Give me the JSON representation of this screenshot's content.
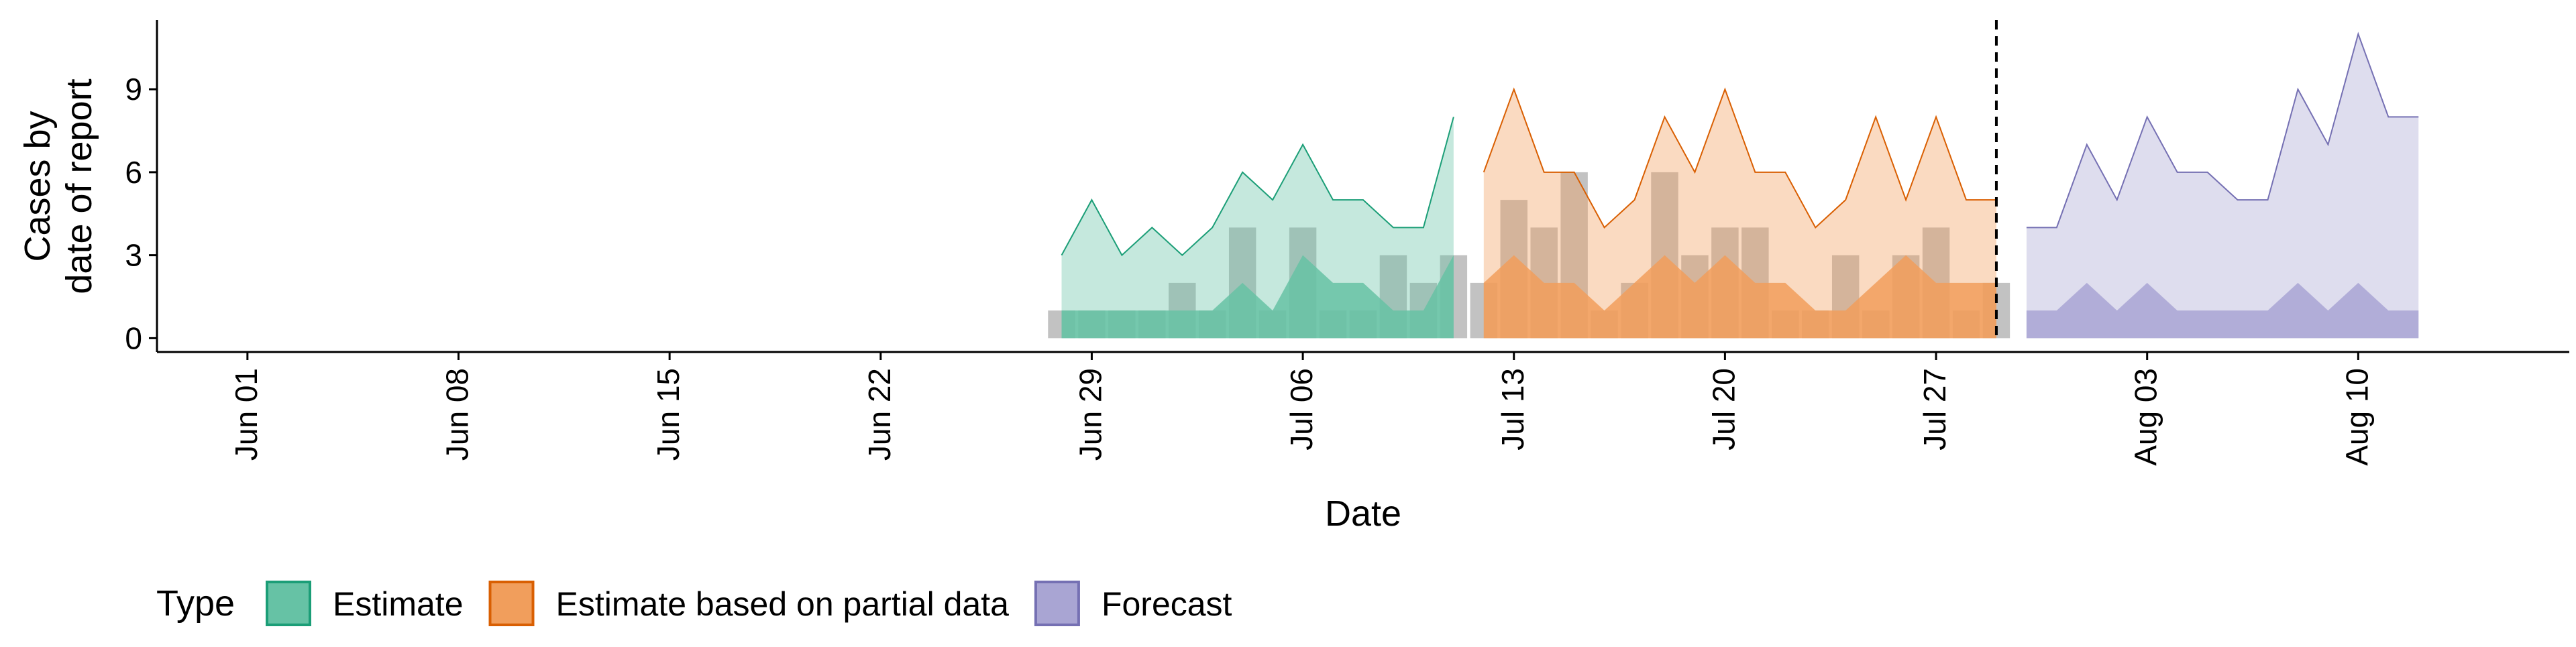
{
  "chart_data": {
    "type": "area",
    "xlabel": "Date",
    "ylabel_lines": [
      "Cases by",
      "date of report"
    ],
    "x_tick_labels": [
      "Jun 01",
      "Jun 08",
      "Jun 15",
      "Jun 22",
      "Jun 29",
      "Jul 06",
      "Jul 13",
      "Jul 20",
      "Jul 27",
      "Aug 03",
      "Aug 10"
    ],
    "x_tick_dates": [
      "2020-06-01",
      "2020-06-08",
      "2020-06-15",
      "2020-06-22",
      "2020-06-29",
      "2020-07-06",
      "2020-07-13",
      "2020-07-20",
      "2020-07-27",
      "2020-08-03",
      "2020-08-10"
    ],
    "xlim": [
      "2020-05-29",
      "2020-08-17"
    ],
    "y_ticks": [
      0,
      3,
      6,
      9
    ],
    "ylim": [
      -0.5,
      11.5
    ],
    "forecast_date": "2020-07-29",
    "legend": {
      "title": "Type",
      "position": "bottom",
      "entries": [
        {
          "label": "Estimate",
          "fill": "#66C2A5",
          "stroke": "#1B9E77"
        },
        {
          "label": "Estimate based on partial data",
          "fill": "#F19E5C",
          "stroke": "#D95F02"
        },
        {
          "label": "Forecast",
          "fill": "#A9A5D3",
          "stroke": "#7570B3"
        }
      ]
    },
    "series": [
      {
        "name": "Estimate",
        "color": "#1B9E77",
        "fill": "#66C2A5",
        "dates": [
          "2020-06-28",
          "2020-06-29",
          "2020-06-30",
          "2020-07-01",
          "2020-07-02",
          "2020-07-03",
          "2020-07-04",
          "2020-07-05",
          "2020-07-06",
          "2020-07-07",
          "2020-07-08",
          "2020-07-09",
          "2020-07-10",
          "2020-07-11"
        ],
        "lower": [
          1,
          1,
          1,
          1,
          1,
          1,
          2,
          1,
          3,
          2,
          2,
          1,
          1,
          3
        ],
        "upper": [
          3,
          5,
          3,
          4,
          3,
          4,
          6,
          5,
          7,
          5,
          5,
          4,
          4,
          8
        ]
      },
      {
        "name": "Estimate based on partial data",
        "color": "#D95F02",
        "fill": "#F19E5C",
        "dates": [
          "2020-07-12",
          "2020-07-13",
          "2020-07-14",
          "2020-07-15",
          "2020-07-16",
          "2020-07-17",
          "2020-07-18",
          "2020-07-19",
          "2020-07-20",
          "2020-07-21",
          "2020-07-22",
          "2020-07-23",
          "2020-07-24",
          "2020-07-25",
          "2020-07-26",
          "2020-07-27",
          "2020-07-28",
          "2020-07-29"
        ],
        "lower": [
          2,
          3,
          2,
          2,
          1,
          2,
          3,
          2,
          3,
          2,
          2,
          1,
          1,
          2,
          3,
          2,
          2,
          2
        ],
        "upper": [
          6,
          9,
          6,
          6,
          4,
          5,
          8,
          6,
          9,
          6,
          6,
          4,
          5,
          8,
          5,
          8,
          5,
          5
        ]
      },
      {
        "name": "Forecast",
        "color": "#7570B3",
        "fill": "#A9A5D3",
        "dates": [
          "2020-07-30",
          "2020-07-31",
          "2020-08-01",
          "2020-08-02",
          "2020-08-03",
          "2020-08-04",
          "2020-08-05",
          "2020-08-06",
          "2020-08-07",
          "2020-08-08",
          "2020-08-09",
          "2020-08-10",
          "2020-08-11",
          "2020-08-12"
        ],
        "lower": [
          1,
          1,
          2,
          1,
          2,
          1,
          1,
          1,
          1,
          2,
          1,
          2,
          1,
          1
        ],
        "upper": [
          4,
          4,
          7,
          5,
          8,
          6,
          6,
          5,
          5,
          9,
          7,
          11,
          8,
          8
        ]
      }
    ],
    "reported_cases": {
      "dates": [
        "2020-06-28",
        "2020-06-29",
        "2020-06-30",
        "2020-07-01",
        "2020-07-02",
        "2020-07-03",
        "2020-07-04",
        "2020-07-05",
        "2020-07-06",
        "2020-07-07",
        "2020-07-08",
        "2020-07-09",
        "2020-07-10",
        "2020-07-11",
        "2020-07-12",
        "2020-07-13",
        "2020-07-14",
        "2020-07-15",
        "2020-07-16",
        "2020-07-17",
        "2020-07-18",
        "2020-07-19",
        "2020-07-20",
        "2020-07-21",
        "2020-07-22",
        "2020-07-23",
        "2020-07-24",
        "2020-07-25",
        "2020-07-26",
        "2020-07-27",
        "2020-07-28",
        "2020-07-29"
      ],
      "values": [
        1,
        1,
        1,
        1,
        2,
        1,
        4,
        1,
        4,
        1,
        1,
        3,
        2,
        3,
        2,
        5,
        4,
        6,
        1,
        2,
        6,
        3,
        4,
        4,
        1,
        1,
        3,
        1,
        3,
        4,
        1,
        2
      ],
      "color": "#999999"
    }
  }
}
